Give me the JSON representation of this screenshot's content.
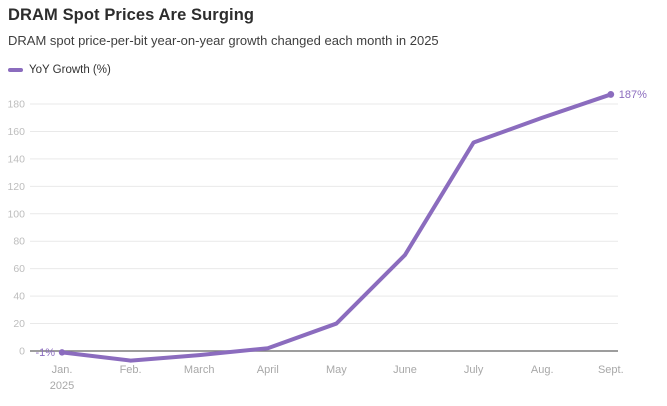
{
  "header": {
    "title": "DRAM Spot Prices Are Surging",
    "subtitle": "DRAM spot price-per-bit year-on-year growth changed each month in 2025"
  },
  "legend": {
    "label": "YoY Growth (%)"
  },
  "chart_data": {
    "type": "line",
    "title": "DRAM Spot Prices Are Surging",
    "subtitle": "DRAM spot price-per-bit year-on-year growth changed each month in 2025",
    "series": [
      {
        "name": "YoY Growth (%)",
        "values": [
          -1,
          -7,
          -3,
          2,
          20,
          70,
          152,
          170,
          187
        ]
      }
    ],
    "categories": [
      "Jan.",
      "Feb.",
      "March",
      "April",
      "May",
      "June",
      "July",
      "Aug.",
      "Sept."
    ],
    "x_axis_year_label": "2025",
    "unit": "%",
    "yticks": [
      0,
      20,
      40,
      60,
      80,
      100,
      120,
      140,
      160,
      180
    ],
    "ylim": [
      -12,
      195
    ],
    "grid": "horizontal",
    "legend_position": "top-left",
    "point_labels": {
      "first": "-1%",
      "last": "187%"
    },
    "colors": {
      "line": "#8b6cbe",
      "grid": "#e9e9e9",
      "zero_line": "#7d7d7d",
      "y_tick_label": "#bdbdbd",
      "x_tick_label": "#a8a8a8",
      "point_label": "#8b6cbe"
    }
  }
}
